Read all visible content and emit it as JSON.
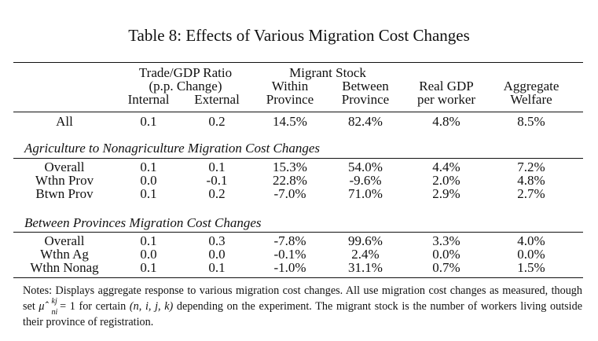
{
  "title": "Table 8: Effects of Various Migration Cost Changes",
  "header": {
    "trade_group": "Trade/GDP Ratio",
    "trade_unit": "(p.p. Change)",
    "internal": "Internal",
    "external": "External",
    "migrant_group": "Migrant Stock",
    "within": "Within",
    "within2": "Province",
    "between": "Between",
    "between2": "Province",
    "gdp1": "Real GDP",
    "gdp2": "per worker",
    "welfare1": "Aggregate",
    "welfare2": "Welfare"
  },
  "rows_all": [
    {
      "label": "All",
      "internal": "0.1",
      "external": "0.2",
      "within": "14.5%",
      "between": "82.4%",
      "gdp": "4.8%",
      "welfare": "8.5%"
    }
  ],
  "section1": {
    "title": "Agriculture to Nonagriculture Migration Cost Changes",
    "rows": [
      {
        "label": "Overall",
        "internal": "0.1",
        "external": "0.1",
        "within": "15.3%",
        "between": "54.0%",
        "gdp": "4.4%",
        "welfare": "7.2%"
      },
      {
        "label": "Wthn Prov",
        "internal": "0.0",
        "external": "-0.1",
        "within": "22.8%",
        "between": "-9.6%",
        "gdp": "2.0%",
        "welfare": "4.8%"
      },
      {
        "label": "Btwn Prov",
        "internal": "0.1",
        "external": "0.2",
        "within": "-7.0%",
        "between": "71.0%",
        "gdp": "2.9%",
        "welfare": "2.7%"
      }
    ]
  },
  "section2": {
    "title": "Between Provinces Migration Cost Changes",
    "rows": [
      {
        "label": "Overall",
        "internal": "0.1",
        "external": "0.3",
        "within": "-7.8%",
        "between": "99.6%",
        "gdp": "3.3%",
        "welfare": "4.0%"
      },
      {
        "label": "Wthn Ag",
        "internal": "0.0",
        "external": "0.0",
        "within": "-0.1%",
        "between": "2.4%",
        "gdp": "0.0%",
        "welfare": "0.0%"
      },
      {
        "label": "Wthn Nonag",
        "internal": "0.1",
        "external": "0.1",
        "within": "-1.0%",
        "between": "31.1%",
        "gdp": "0.7%",
        "welfare": "1.5%"
      }
    ]
  },
  "notes": {
    "part1": "Notes: Displays aggregate response to various migration cost changes. All use migration cost changes as measured, though set ",
    "symbol": "μ̂",
    "sup": "kj",
    "sub": "ni",
    "part2": " = 1 for certain ",
    "tuple": "(n, i, j, k)",
    "part3": " depending on the experiment. The migrant stock is the number of workers living outside their province of registration."
  }
}
